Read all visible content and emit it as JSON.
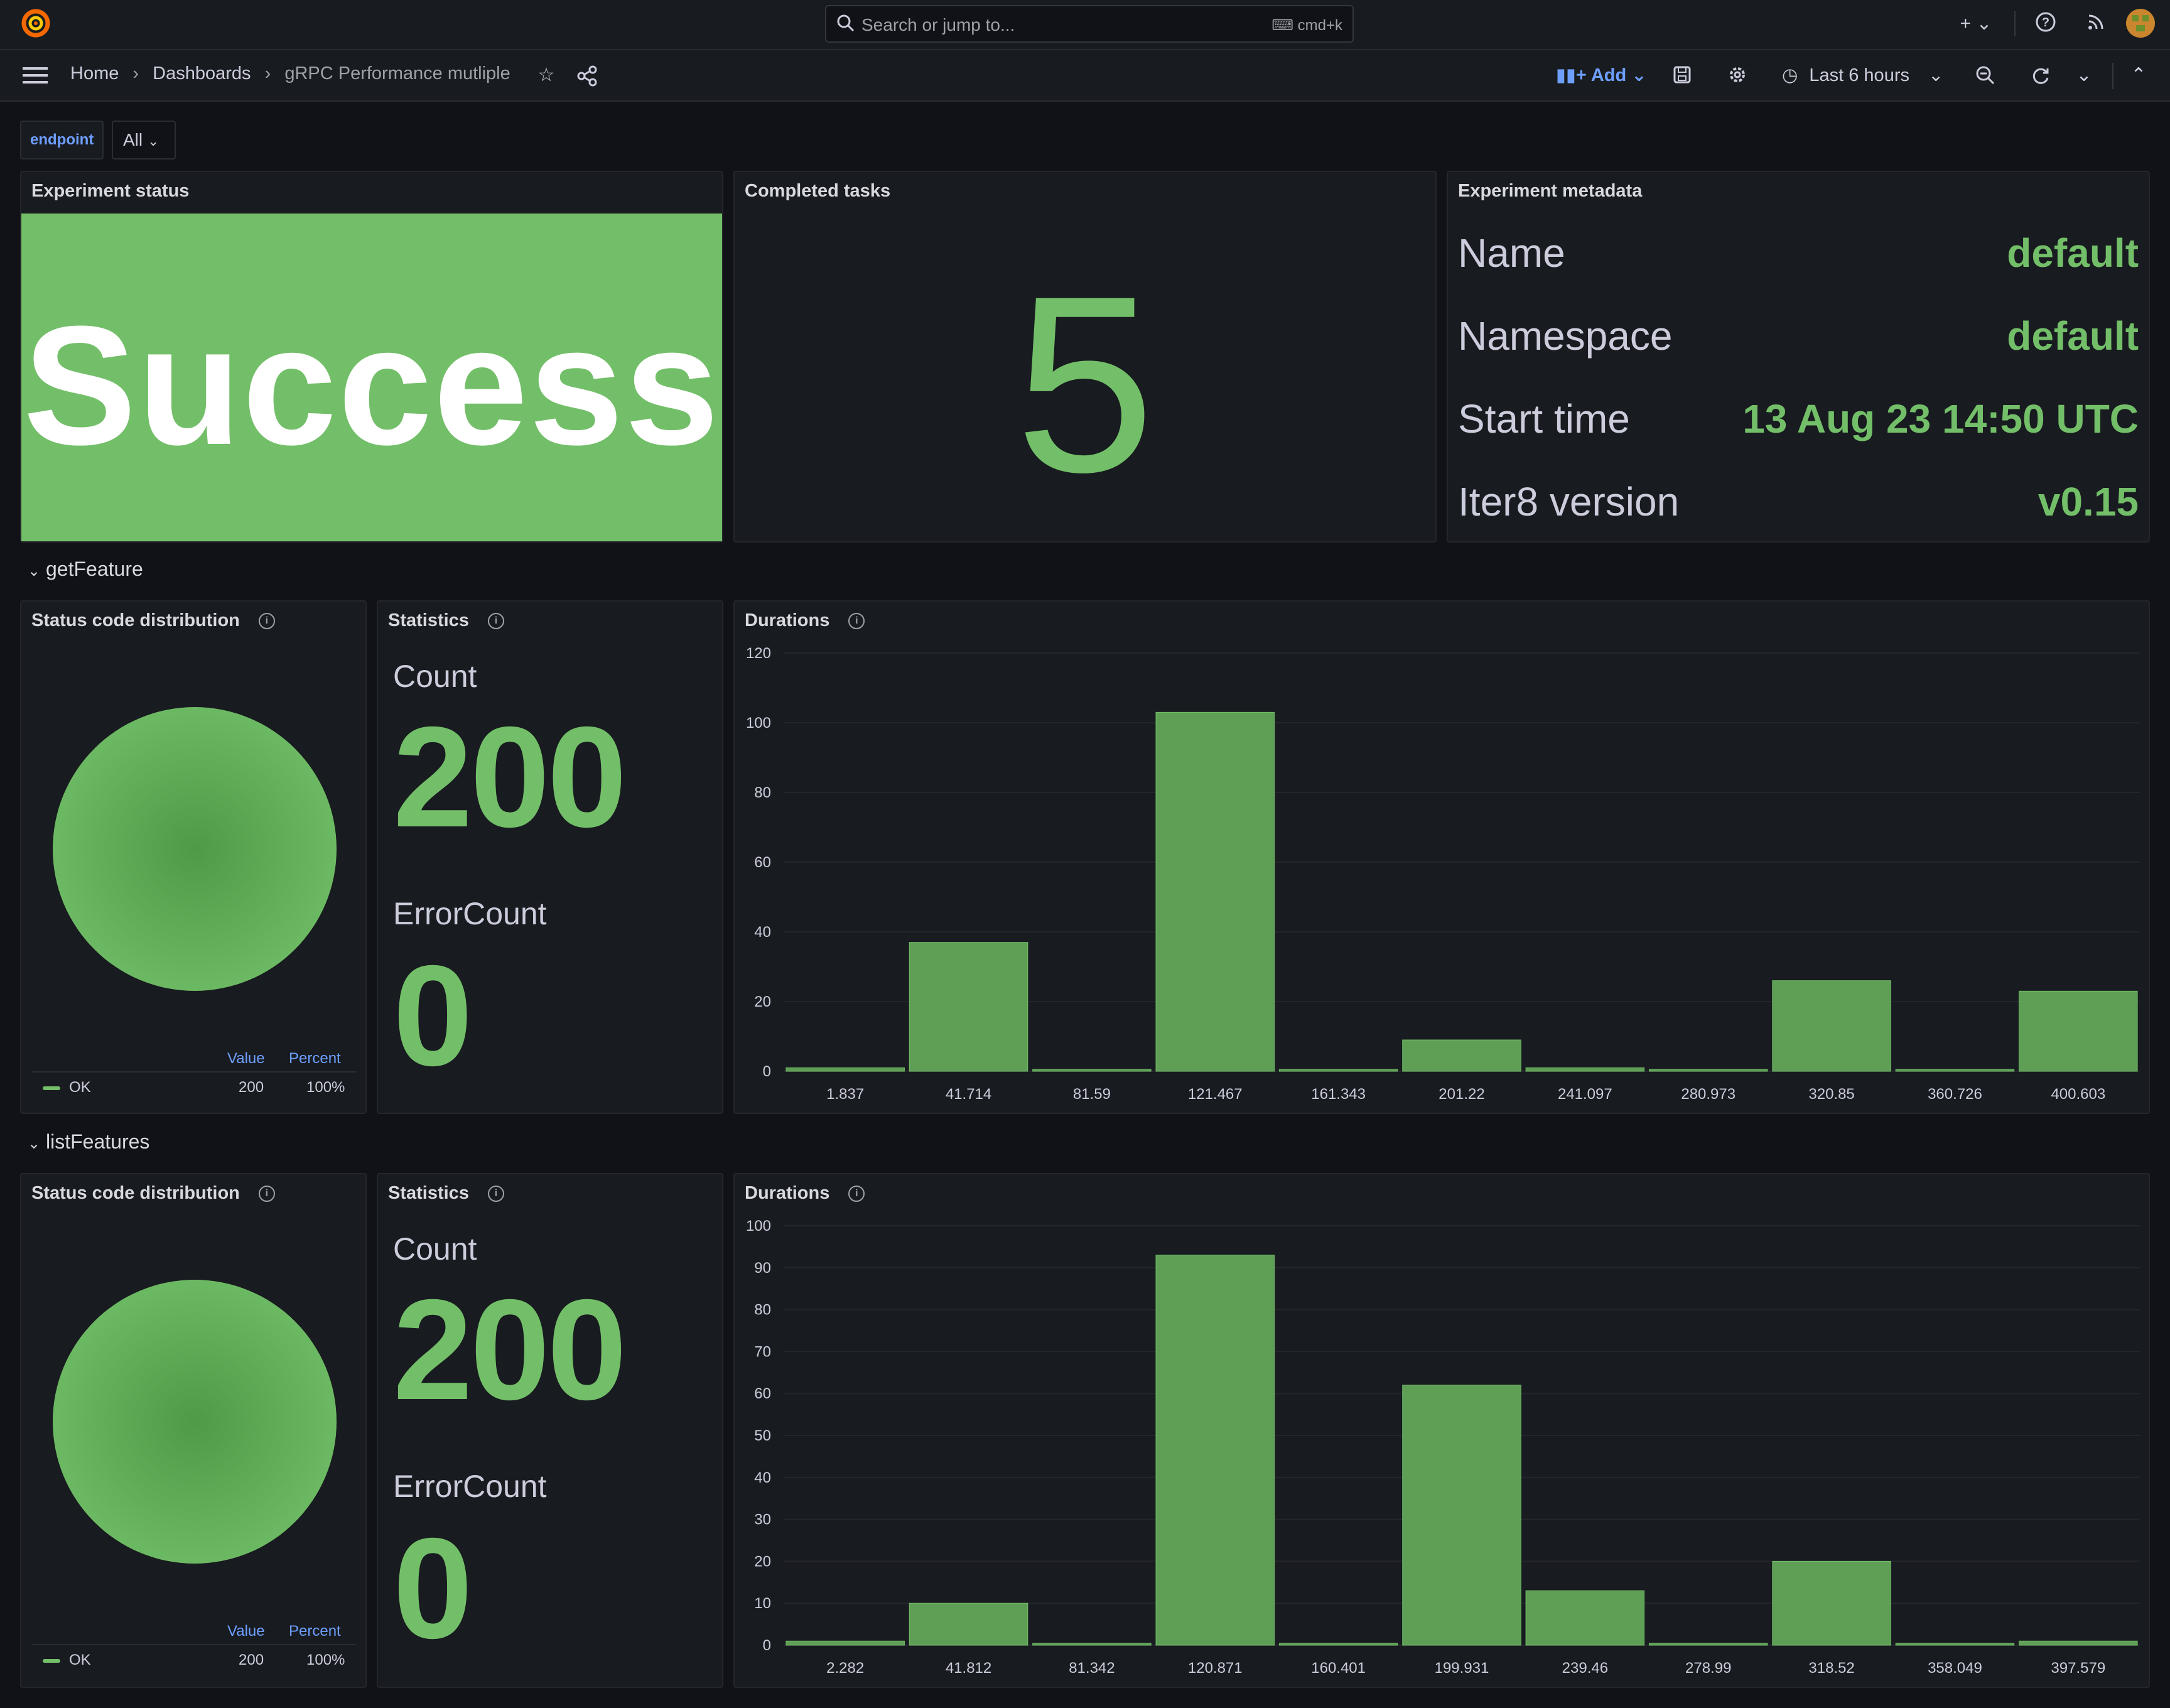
{
  "topbar": {
    "search_placeholder": "Search or jump to...",
    "search_shortcut": "cmd+k"
  },
  "breadcrumb": {
    "home": "Home",
    "dashboards": "Dashboards",
    "current": "gRPC Performance mutliple"
  },
  "toolbar": {
    "add_label": "Add",
    "time_range": "Last 6 hours"
  },
  "variables": {
    "endpoint_label": "endpoint",
    "endpoint_value": "All"
  },
  "experiment_status": {
    "title": "Experiment status",
    "value": "Success"
  },
  "completed_tasks": {
    "title": "Completed tasks",
    "value": "5"
  },
  "metadata": {
    "title": "Experiment metadata",
    "rows": [
      {
        "key": "Name",
        "value": "default"
      },
      {
        "key": "Namespace",
        "value": "default"
      },
      {
        "key": "Start time",
        "value": "13 Aug 23 14:50 UTC"
      },
      {
        "key": "Iter8 version",
        "value": "v0.15"
      }
    ]
  },
  "sections": [
    {
      "name": "getFeature",
      "status_title": "Status code distribution",
      "stats_title": "Statistics",
      "durations_title": "Durations",
      "legend": {
        "value_header": "Value",
        "percent_header": "Percent",
        "label": "OK",
        "value": "200",
        "percent": "100%"
      },
      "count_label": "Count",
      "count": "200",
      "error_label": "ErrorCount",
      "error": "0"
    },
    {
      "name": "listFeatures",
      "status_title": "Status code distribution",
      "stats_title": "Statistics",
      "durations_title": "Durations",
      "legend": {
        "value_header": "Value",
        "percent_header": "Percent",
        "label": "OK",
        "value": "200",
        "percent": "100%"
      },
      "count_label": "Count",
      "count": "200",
      "error_label": "ErrorCount",
      "error": "0"
    }
  ],
  "colors": {
    "accent": "#73bf69",
    "bar": "#5e9e55",
    "panel": "#181b1f",
    "bg": "#111217",
    "link": "#6e9fff"
  },
  "chart_data": [
    {
      "type": "bar",
      "title": "Durations",
      "categories": [
        "1.837",
        "41.714",
        "81.59",
        "121.467",
        "161.343",
        "201.22",
        "241.097",
        "280.973",
        "320.85",
        "360.726",
        "400.603"
      ],
      "values": [
        1,
        37,
        0,
        103,
        0,
        9,
        1,
        0,
        26,
        0,
        23
      ],
      "yticks": [
        0,
        20,
        40,
        60,
        80,
        100,
        120
      ],
      "ylim": [
        0,
        120
      ]
    },
    {
      "type": "bar",
      "title": "Durations",
      "categories": [
        "2.282",
        "41.812",
        "81.342",
        "120.871",
        "160.401",
        "199.931",
        "239.46",
        "278.99",
        "318.52",
        "358.049",
        "397.579"
      ],
      "values": [
        1,
        10,
        0,
        93,
        0,
        62,
        13,
        0,
        20,
        0,
        1
      ],
      "yticks": [
        0,
        10,
        20,
        30,
        40,
        50,
        60,
        70,
        80,
        90,
        100
      ],
      "ylim": [
        0,
        100
      ]
    }
  ]
}
